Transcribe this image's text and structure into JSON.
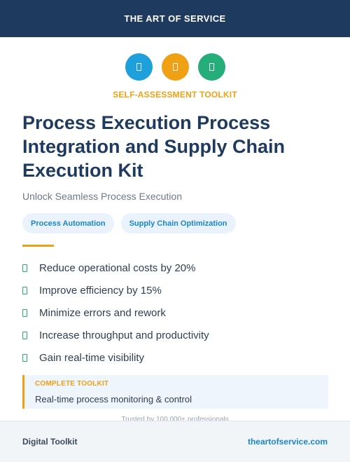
{
  "header": {
    "brand": "THE ART OF SERVICE"
  },
  "icons": [
    {
      "name": "document-icon",
      "color": "#1ea0dc"
    },
    {
      "name": "document-icon",
      "color": "#f0a015"
    },
    {
      "name": "document-icon",
      "color": "#25ad7a"
    }
  ],
  "eyebrow": "SELF-ASSESSMENT TOOLKIT",
  "title": "Process Execution Process Integration and Supply Chain Execution Kit",
  "subtitle": "Unlock Seamless Process Execution",
  "tags": [
    "Process Automation",
    "Supply Chain Optimization"
  ],
  "benefits": [
    "Reduce operational costs by 20%",
    "Improve efficiency by 15%",
    "Minimize errors and rework",
    "Increase throughput and productivity",
    "Gain real-time visibility"
  ],
  "callout": {
    "label": "COMPLETE TOOLKIT",
    "text": "Real-time process monitoring & control"
  },
  "trusted": "Trusted by 100,000+ professionals",
  "footer": {
    "left": "Digital Toolkit",
    "right": "theartofservice.com"
  },
  "colors": {
    "navy": "#1e3a5f",
    "blue": "#1ea0dc",
    "orange": "#f0a015",
    "green": "#25ad7a"
  }
}
